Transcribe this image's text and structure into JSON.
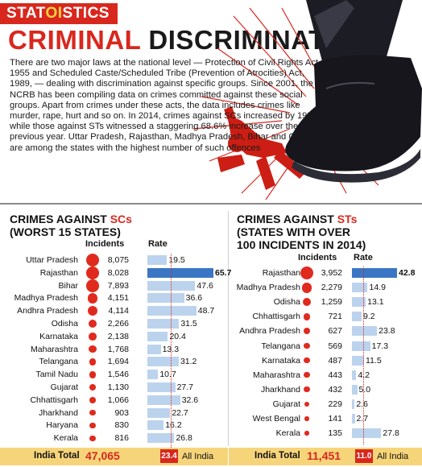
{
  "brand": {
    "part1": "STAT",
    "part2": "OI",
    "part3": "STICS"
  },
  "headline": {
    "red": "CRIMINAL",
    "black": "DISCRIMINATION"
  },
  "intro": "There are two major laws at the national level — Protection of Civil Rights Act, 1955 and Scheduled Caste/Scheduled Tribe (Prevention of Atrocities) Act, 1989, — dealing with discrimination against specific groups. Since 2001, the NCRB has been compiling data on crimes committed against these social groups. Apart from crimes under these acts, the data includes crimes like murder, rape, hurt and so on. In 2014, crimes against SCs increased by 19% while those against STs witnessed a staggering 68.6% increase over the previous year.  Uttar Pradesh, Rajasthan, Madhya Pradesh, Bihar and Odisha are among the states with the highest number of such offences",
  "colors": {
    "red": "#d8281e",
    "bar": "#bcd3ee",
    "bar_highlight": "#3a76c4",
    "band": "#f6d57a"
  },
  "chart_data": [
    {
      "type": "table",
      "title_line1_prefix": "CRIMES AGAINST ",
      "title_line1_highlight": "SCs",
      "title_line2": "(WORST 15 STATES)",
      "col_incidents": "Incidents",
      "col_rate": "Rate",
      "rows": [
        {
          "state": "Uttar Pradesh",
          "incidents": "8,075",
          "incidents_n": 8075,
          "rate": 19.5
        },
        {
          "state": "Rajasthan",
          "incidents": "8,028",
          "incidents_n": 8028,
          "rate": 65.7
        },
        {
          "state": "Bihar",
          "incidents": "7,893",
          "incidents_n": 7893,
          "rate": 47.6
        },
        {
          "state": "Madhya Pradesh",
          "incidents": "4,151",
          "incidents_n": 4151,
          "rate": 36.6
        },
        {
          "state": "Andhra Pradesh",
          "incidents": "4,114",
          "incidents_n": 4114,
          "rate": 48.7
        },
        {
          "state": "Odisha",
          "incidents": "2,266",
          "incidents_n": 2266,
          "rate": 31.5
        },
        {
          "state": "Karnataka",
          "incidents": "2,138",
          "incidents_n": 2138,
          "rate": 20.4
        },
        {
          "state": "Maharashtra",
          "incidents": "1,768",
          "incidents_n": 1768,
          "rate": 13.3
        },
        {
          "state": "Telangana",
          "incidents": "1,694",
          "incidents_n": 1694,
          "rate": 31.2
        },
        {
          "state": "Tamil Nadu",
          "incidents": "1,546",
          "incidents_n": 1546,
          "rate": 10.7
        },
        {
          "state": "Gujarat",
          "incidents": "1,130",
          "incidents_n": 1130,
          "rate": 27.7
        },
        {
          "state": "Chhattisgarh",
          "incidents": "1,066",
          "incidents_n": 1066,
          "rate": 32.6
        },
        {
          "state": "Jharkhand",
          "incidents": "903",
          "incidents_n": 903,
          "rate": 22.7
        },
        {
          "state": "Haryana",
          "incidents": "830",
          "incidents_n": 830,
          "rate": 16.2
        },
        {
          "state": "Kerala",
          "incidents": "816",
          "incidents_n": 816,
          "rate": 26.8
        }
      ],
      "total_label": "India Total",
      "total_value": "47,065",
      "all_india_rate": "23.4",
      "all_india_rate_n": 23.4,
      "all_india_label": "All India",
      "rate_max": 65.7
    },
    {
      "type": "table",
      "title_line1_prefix": "CRIMES AGAINST ",
      "title_line1_highlight": "STs",
      "title_line2": "(STATES WITH OVER",
      "title_line3": "100 INCIDENTS IN 2014)",
      "col_incidents": "Incidents",
      "col_rate": "Rate",
      "rows": [
        {
          "state": "Rajasthan",
          "incidents": "3,952",
          "incidents_n": 3952,
          "rate": 42.8
        },
        {
          "state": "Madhya Pradesh",
          "incidents": "2,279",
          "incidents_n": 2279,
          "rate": 14.9
        },
        {
          "state": "Odisha",
          "incidents": "1,259",
          "incidents_n": 1259,
          "rate": 13.1
        },
        {
          "state": "Chhattisgarh",
          "incidents": "721",
          "incidents_n": 721,
          "rate": 9.2
        },
        {
          "state": "Andhra Pradesh",
          "incidents": "627",
          "incidents_n": 627,
          "rate": 23.8
        },
        {
          "state": "Telangana",
          "incidents": "569",
          "incidents_n": 569,
          "rate": 17.3
        },
        {
          "state": "Karnataka",
          "incidents": "487",
          "incidents_n": 487,
          "rate": 11.5
        },
        {
          "state": "Maharashtra",
          "incidents": "443",
          "incidents_n": 443,
          "rate": 4.2
        },
        {
          "state": "Jharkhand",
          "incidents": "432",
          "incidents_n": 432,
          "rate": 5.0
        },
        {
          "state": "Gujarat",
          "incidents": "229",
          "incidents_n": 229,
          "rate": 2.6
        },
        {
          "state": "West Bengal",
          "incidents": "141",
          "incidents_n": 141,
          "rate": 2.7
        },
        {
          "state": "Kerala",
          "incidents": "135",
          "incidents_n": 135,
          "rate": 27.8
        }
      ],
      "total_label": "India Total",
      "total_value": "11,451",
      "all_india_rate": "11.0",
      "all_india_rate_n": 11.0,
      "all_india_label": "All India",
      "rate_max": 42.8
    }
  ]
}
